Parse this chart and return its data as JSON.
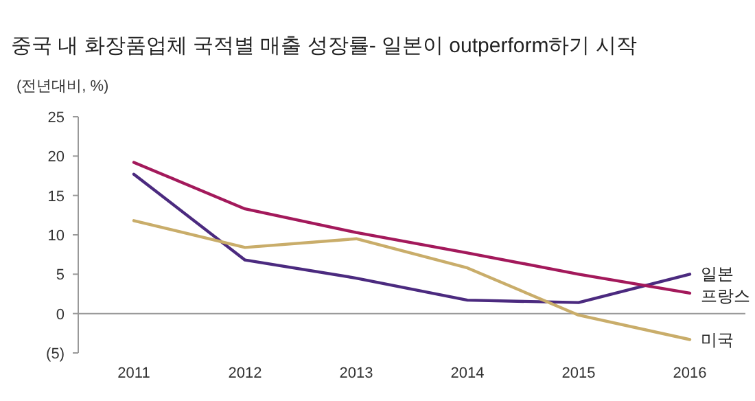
{
  "chart_data": {
    "type": "line",
    "title": "중국 내 화장품업체 국적별 매출 성장률- 일본이 outperform하기 시작",
    "ylabel": "(전년대비, %)",
    "categories": [
      "2011",
      "2012",
      "2013",
      "2014",
      "2015",
      "2016"
    ],
    "series": [
      {
        "name": "일본",
        "color": "#4b2a7f",
        "values": [
          17.7,
          6.8,
          4.5,
          1.7,
          1.4,
          5.0
        ]
      },
      {
        "name": "프랑스",
        "color": "#a3195b",
        "values": [
          19.2,
          13.3,
          10.3,
          7.7,
          5.0,
          2.6
        ]
      },
      {
        "name": "미국",
        "color": "#c9ad6a",
        "values": [
          11.8,
          8.4,
          9.5,
          5.8,
          -0.2,
          -3.3
        ]
      }
    ],
    "ylim": [
      -5,
      25
    ],
    "yticks": [
      {
        "value": -5,
        "label": "(5)"
      },
      0,
      5,
      10,
      15,
      20,
      25
    ],
    "legend": false,
    "marker": "none",
    "line_style": "solid"
  }
}
